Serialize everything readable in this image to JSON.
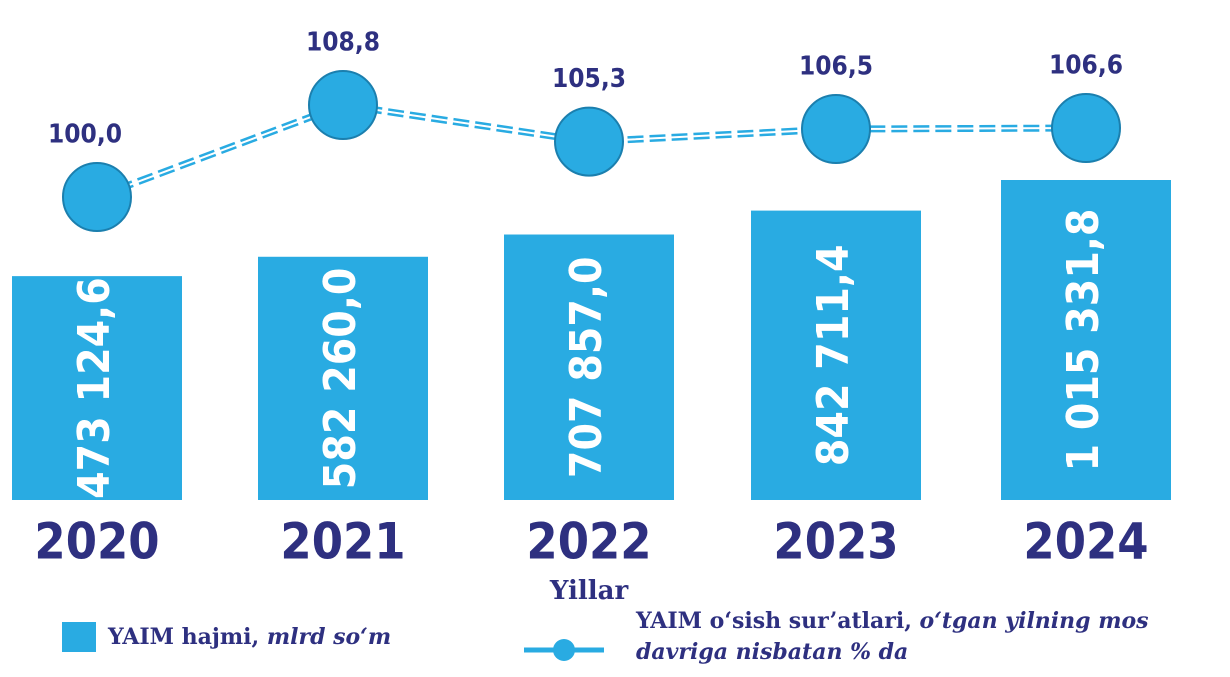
{
  "chart_data": {
    "type": "bar_line",
    "x_label": "Yillar",
    "categories": [
      "2020",
      "2021",
      "2022",
      "2023",
      "2024"
    ],
    "series": [
      {
        "name": "YAIM hajmi, mlrd so‘m",
        "color": "#29abe2",
        "values": [
          473124.6,
          582260.0,
          707857.0,
          842711.4,
          1015331.8
        ],
        "value_labels": [
          "473 124,6",
          "582 260,0",
          "707 857,0",
          "842 711,4",
          "1 015 331,8"
        ]
      },
      {
        "name": "YAIM o‘sish sur’atlari, o‘tgan yilning mos davriga nisbatan % da",
        "color": "#29abe2",
        "type": "line",
        "values": [
          100.0,
          108.8,
          105.3,
          106.5,
          106.6
        ],
        "value_labels": [
          "100,0",
          "108,8",
          "105,3",
          "106,5",
          "106,6"
        ]
      }
    ]
  }
}
